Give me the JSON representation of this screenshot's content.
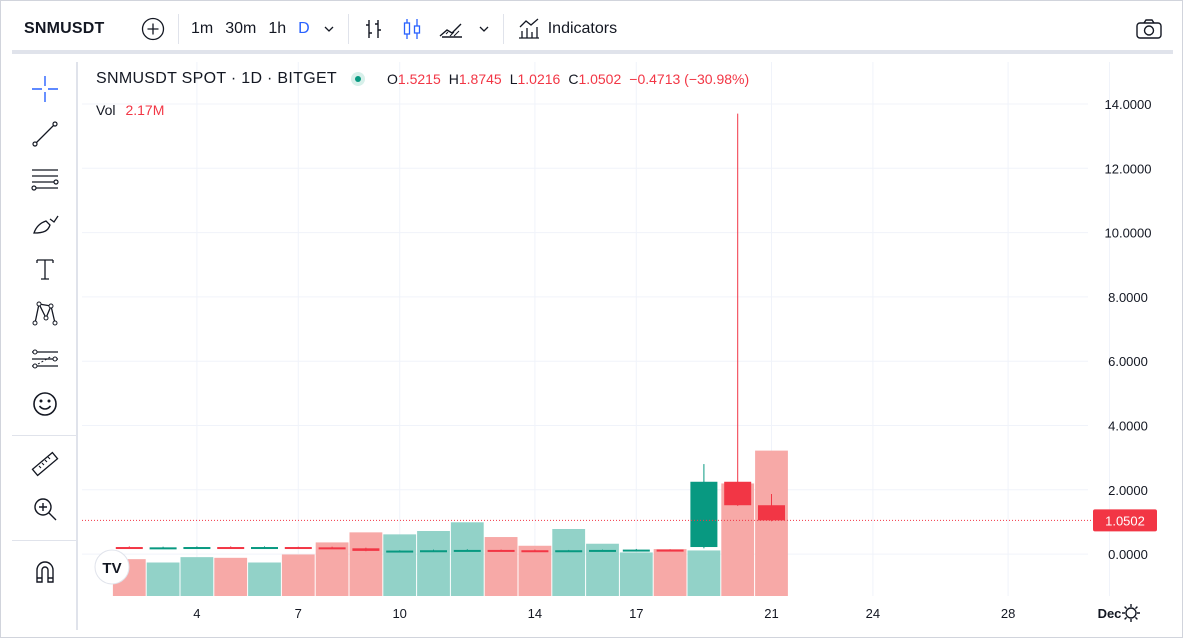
{
  "symbol": "SNMUSDT",
  "intervals": [
    "1m",
    "30m",
    "1h",
    "D"
  ],
  "active_interval": "D",
  "indicators_label": "Indicators",
  "legend": {
    "title": "SNMUSDT SPOT · 1D · BITGET",
    "o_label": "O",
    "o": "1.5215",
    "h_label": "H",
    "h": "1.8745",
    "l_label": "L",
    "l": "1.0216",
    "c_label": "C",
    "c": "1.0502",
    "change": "−0.4713 (−30.98%)"
  },
  "volume": {
    "label": "Vol",
    "value": "2.17M"
  },
  "last_price_label": "1.0502",
  "colors": {
    "up": "#089981",
    "down": "#f23645",
    "up_vol": "#92d2c8",
    "down_vol": "#f7a9a7",
    "accent": "#2962ff"
  },
  "chart_data": {
    "type": "candlestick",
    "y_range": [
      -0.6,
      14.5
    ],
    "y_ticks": [
      "14.0000",
      "12.0000",
      "10.0000",
      "8.0000",
      "6.0000",
      "4.0000",
      "2.0000",
      "0.0000"
    ],
    "y_tick_values": [
      14,
      12,
      10,
      8,
      6,
      4,
      2,
      0
    ],
    "x_ticks": [
      "4",
      "7",
      "10",
      "14",
      "17",
      "21",
      "24",
      "28",
      "Dec"
    ],
    "x_tick_days": [
      4,
      7,
      10,
      14,
      17,
      21,
      24,
      28,
      31
    ],
    "candles": [
      {
        "day": 2,
        "o": 0.22,
        "h": 0.24,
        "l": 0.19,
        "c": 0.2,
        "v": 0.55
      },
      {
        "day": 3,
        "o": 0.2,
        "h": 0.23,
        "l": 0.18,
        "c": 0.21,
        "v": 0.5
      },
      {
        "day": 4,
        "o": 0.21,
        "h": 0.24,
        "l": 0.19,
        "c": 0.22,
        "v": 0.58
      },
      {
        "day": 5,
        "o": 0.22,
        "h": 0.24,
        "l": 0.2,
        "c": 0.21,
        "v": 0.57
      },
      {
        "day": 6,
        "o": 0.21,
        "h": 0.24,
        "l": 0.19,
        "c": 0.22,
        "v": 0.5
      },
      {
        "day": 7,
        "o": 0.22,
        "h": 0.23,
        "l": 0.2,
        "c": 0.21,
        "v": 0.62
      },
      {
        "day": 8,
        "o": 0.21,
        "h": 0.23,
        "l": 0.17,
        "c": 0.18,
        "v": 0.8
      },
      {
        "day": 9,
        "o": 0.18,
        "h": 0.2,
        "l": 0.09,
        "c": 0.1,
        "v": 0.95
      },
      {
        "day": 10,
        "o": 0.1,
        "h": 0.12,
        "l": 0.06,
        "c": 0.11,
        "v": 0.92
      },
      {
        "day": 11,
        "o": 0.11,
        "h": 0.14,
        "l": 0.09,
        "c": 0.12,
        "v": 0.97
      },
      {
        "day": 12,
        "o": 0.12,
        "h": 0.15,
        "l": 0.11,
        "c": 0.13,
        "v": 1.1
      },
      {
        "day": 13,
        "o": 0.13,
        "h": 0.14,
        "l": 0.11,
        "c": 0.12,
        "v": 0.88
      },
      {
        "day": 14,
        "o": 0.12,
        "h": 0.14,
        "l": 0.1,
        "c": 0.11,
        "v": 0.75
      },
      {
        "day": 15,
        "o": 0.11,
        "h": 0.13,
        "l": 0.1,
        "c": 0.12,
        "v": 1.0
      },
      {
        "day": 16,
        "o": 0.12,
        "h": 0.14,
        "l": 0.11,
        "c": 0.13,
        "v": 0.78
      },
      {
        "day": 17,
        "o": 0.13,
        "h": 0.16,
        "l": 0.12,
        "c": 0.14,
        "v": 0.65
      },
      {
        "day": 18,
        "o": 0.14,
        "h": 0.15,
        "l": 0.12,
        "c": 0.13,
        "v": 0.7
      },
      {
        "day": 19,
        "o": 0.22,
        "h": 2.8,
        "l": 0.18,
        "c": 2.25,
        "v": 0.68
      },
      {
        "day": 20,
        "o": 2.25,
        "h": 13.7,
        "l": 1.5,
        "c": 1.52,
        "v": 1.68
      },
      {
        "day": 21,
        "o": 1.52,
        "h": 1.87,
        "l": 1.02,
        "c": 1.05,
        "v": 2.17
      }
    ]
  }
}
